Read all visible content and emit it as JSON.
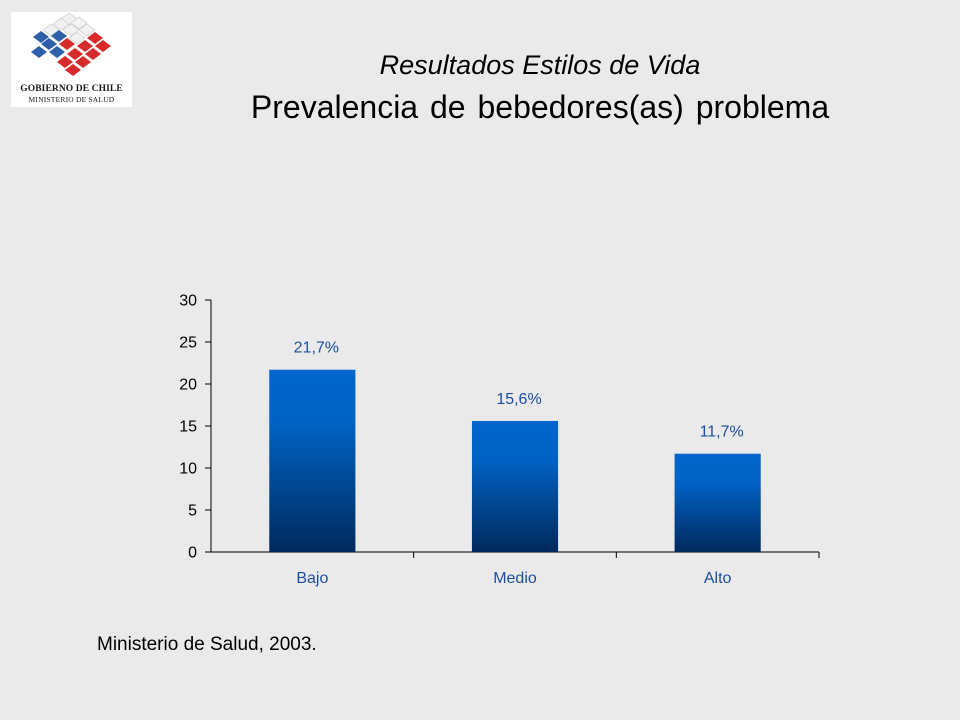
{
  "logo": {
    "line1": "GOBIERNO DE CHILE",
    "line2": "MINISTERIO DE SALUD",
    "colors": {
      "blue": "#2f5fa8",
      "red": "#d72a2a",
      "white": "#f2f2f2"
    }
  },
  "header": {
    "subtitle": "Resultados Estilos de Vida",
    "title": "Prevalencia de bebedores(as) problema"
  },
  "chart_data": {
    "type": "bar",
    "categories": [
      "Bajo",
      "Medio",
      "Alto"
    ],
    "values": [
      21.7,
      15.6,
      11.7
    ],
    "data_labels": [
      "21,7%",
      "15,6%",
      "11,7%"
    ],
    "yticks": [
      0,
      5,
      10,
      15,
      20,
      25,
      30
    ],
    "ylim": [
      0,
      30
    ],
    "title": "",
    "xlabel": "",
    "ylabel": "",
    "grid": false,
    "legend": "none",
    "colors": {
      "bar_top": "#0066cc",
      "bar_bottom": "#002a5c",
      "label": "#1e50a0",
      "axis": "#000000"
    }
  },
  "footer": {
    "source": "Ministerio de Salud, 2003."
  }
}
